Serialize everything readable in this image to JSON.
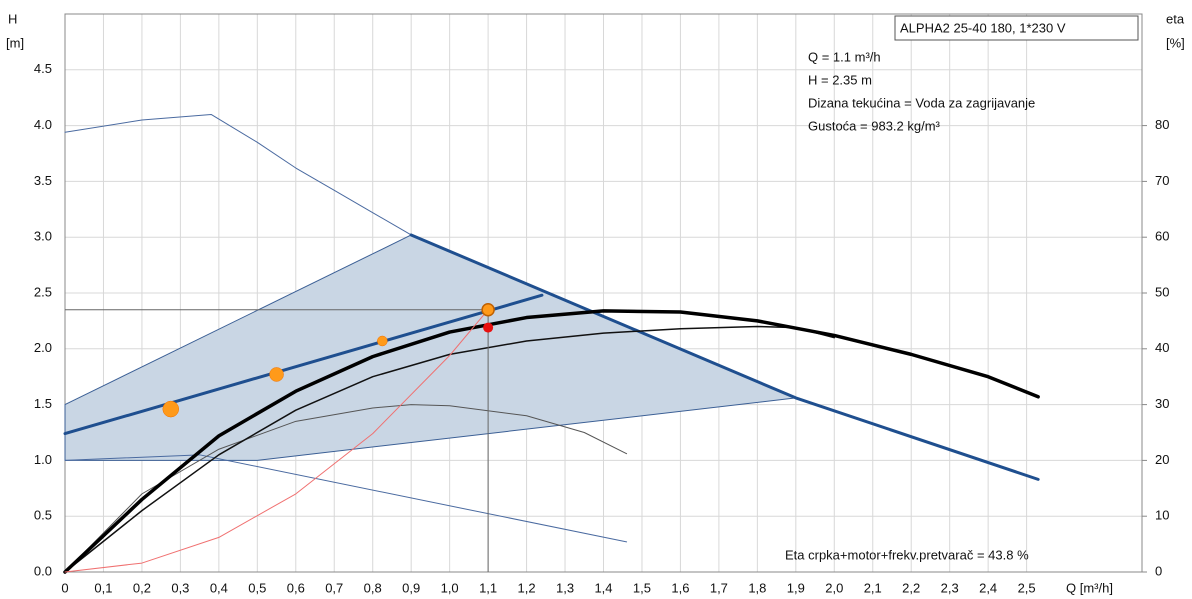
{
  "chart_data": {
    "type": "line",
    "y_label": "H",
    "y_unit": "[m]",
    "y2_label": "eta",
    "y2_unit": "[%]",
    "x_label": "Q [m³/h]",
    "info_title": "ALPHA2 25-40 180, 1*230 V",
    "info_lines": [
      "Q = 1.1 m³/h",
      "H = 2.35 m",
      "Dizana tekućina = Voda za zagrijavanje",
      "Gustoća = 983.2 kg/m³"
    ],
    "footer": "Eta crpka+motor+frekv.pretvarač = 43.8 %",
    "xlim": [
      0,
      2.8
    ],
    "ylim": [
      0,
      5
    ],
    "y2lim": [
      0,
      100
    ],
    "grid": true,
    "xticks": [
      0,
      {
        "value": 0.1,
        "label": "0,1"
      },
      {
        "value": 0.2,
        "label": "0,2"
      },
      {
        "value": 0.3,
        "label": "0,3"
      },
      {
        "value": 0.4,
        "label": "0,4"
      },
      {
        "value": 0.5,
        "label": "0,5"
      },
      {
        "value": 0.6,
        "label": "0,6"
      },
      {
        "value": 0.7,
        "label": "0,7"
      },
      {
        "value": 0.8,
        "label": "0,8"
      },
      {
        "value": 0.9,
        "label": "0,9"
      },
      {
        "value": 1.0,
        "label": "1,0"
      },
      {
        "value": 1.1,
        "label": "1,1"
      },
      {
        "value": 1.2,
        "label": "1,2"
      },
      {
        "value": 1.3,
        "label": "1,3"
      },
      {
        "value": 1.4,
        "label": "1,4"
      },
      {
        "value": 1.5,
        "label": "1,5"
      },
      {
        "value": 1.6,
        "label": "1,6"
      },
      {
        "value": 1.7,
        "label": "1,7"
      },
      {
        "value": 1.8,
        "label": "1,8"
      },
      {
        "value": 1.9,
        "label": "1,9"
      },
      {
        "value": 2.0,
        "label": "2,0"
      },
      {
        "value": 2.1,
        "label": "2,1"
      },
      {
        "value": 2.2,
        "label": "2,2"
      },
      {
        "value": 2.3,
        "label": "2,3"
      },
      {
        "value": 2.4,
        "label": "2,4"
      },
      {
        "value": 2.5,
        "label": "2,5"
      }
    ],
    "yticks": [
      {
        "value": 0,
        "label": "0.0"
      },
      0.5,
      {
        "value": 1,
        "label": "1.0"
      },
      1.5,
      {
        "value": 2,
        "label": "2.0"
      },
      2.5,
      {
        "value": 3,
        "label": "3.0"
      },
      3.5,
      {
        "value": 4,
        "label": "4.0"
      },
      4.5
    ],
    "y2ticks": [
      0,
      10,
      20,
      30,
      40,
      50,
      60,
      70,
      80
    ],
    "series": [
      {
        "x": [
          0,
          0,
          0.9,
          1.9,
          0.5
        ],
        "values": [
          1.0,
          1.5,
          3.02,
          1.56,
          1.0
        ],
        "color": "#3b5f95",
        "fill": "#c9d6e4",
        "width": 1
      },
      {
        "x": [
          0,
          0.2,
          0.38,
          0.5,
          0.6,
          0.7,
          0.8,
          0.9
        ],
        "values": [
          3.94,
          4.05,
          4.1,
          3.85,
          3.62,
          3.42,
          3.22,
          3.02
        ],
        "color": "#4a6aa0",
        "width": 1
      },
      {
        "x": [
          0.9,
          1.9,
          2.53
        ],
        "values": [
          3.02,
          1.56,
          0.83
        ],
        "color": "#1f4f8f",
        "width": 3
      },
      {
        "x": [
          0,
          1.24
        ],
        "values": [
          1.24,
          2.48
        ],
        "color": "#1f4f8f",
        "width": 3
      },
      {
        "x": [
          0,
          0.35,
          1.46
        ],
        "values": [
          1.0,
          1.05,
          0.27
        ],
        "color": "#4a6aa0",
        "width": 1
      },
      {
        "x": [
          0,
          0.2,
          0.4,
          0.6,
          0.8,
          0.9,
          1.0,
          1.2,
          1.35,
          1.46
        ],
        "values": [
          0,
          0.7,
          1.1,
          1.35,
          1.47,
          1.5,
          1.49,
          1.4,
          1.25,
          1.06
        ],
        "color": "#555555",
        "width": 1
      },
      {
        "x": [
          0,
          0.2,
          0.4,
          0.6,
          0.8,
          1.0,
          1.2,
          1.4,
          1.6,
          1.8,
          1.9,
          2.0
        ],
        "values": [
          0,
          0.55,
          1.05,
          1.45,
          1.75,
          1.95,
          2.07,
          2.14,
          2.18,
          2.2,
          2.19,
          2.1
        ],
        "color": "#111111",
        "width": 1.5
      },
      {
        "x": [
          0,
          0.2,
          0.4,
          0.6,
          0.8,
          1.0,
          1.2,
          1.4,
          1.6,
          1.8,
          2.0,
          2.2,
          2.4,
          2.53
        ],
        "values": [
          0,
          0.65,
          1.22,
          1.62,
          1.93,
          2.15,
          2.28,
          2.34,
          2.33,
          2.25,
          2.12,
          1.95,
          1.75,
          1.57
        ],
        "color": "#000000",
        "width": 3.5
      },
      {
        "x": [
          0,
          0.2,
          0.4,
          0.6,
          0.8,
          1.0,
          1.1
        ],
        "values": [
          0,
          0.08,
          0.31,
          0.7,
          1.24,
          1.94,
          2.35
        ],
        "color": "#f07070",
        "width": 1
      }
    ],
    "points": {
      "x": [
        0.275,
        0.55,
        0.825,
        1.1
      ],
      "values": [
        1.46,
        1.77,
        2.07,
        2.35
      ],
      "color": "#ff9a1a"
    },
    "duty_point": {
      "x": 1.1,
      "value": 2.19,
      "color": "#e81010"
    }
  }
}
